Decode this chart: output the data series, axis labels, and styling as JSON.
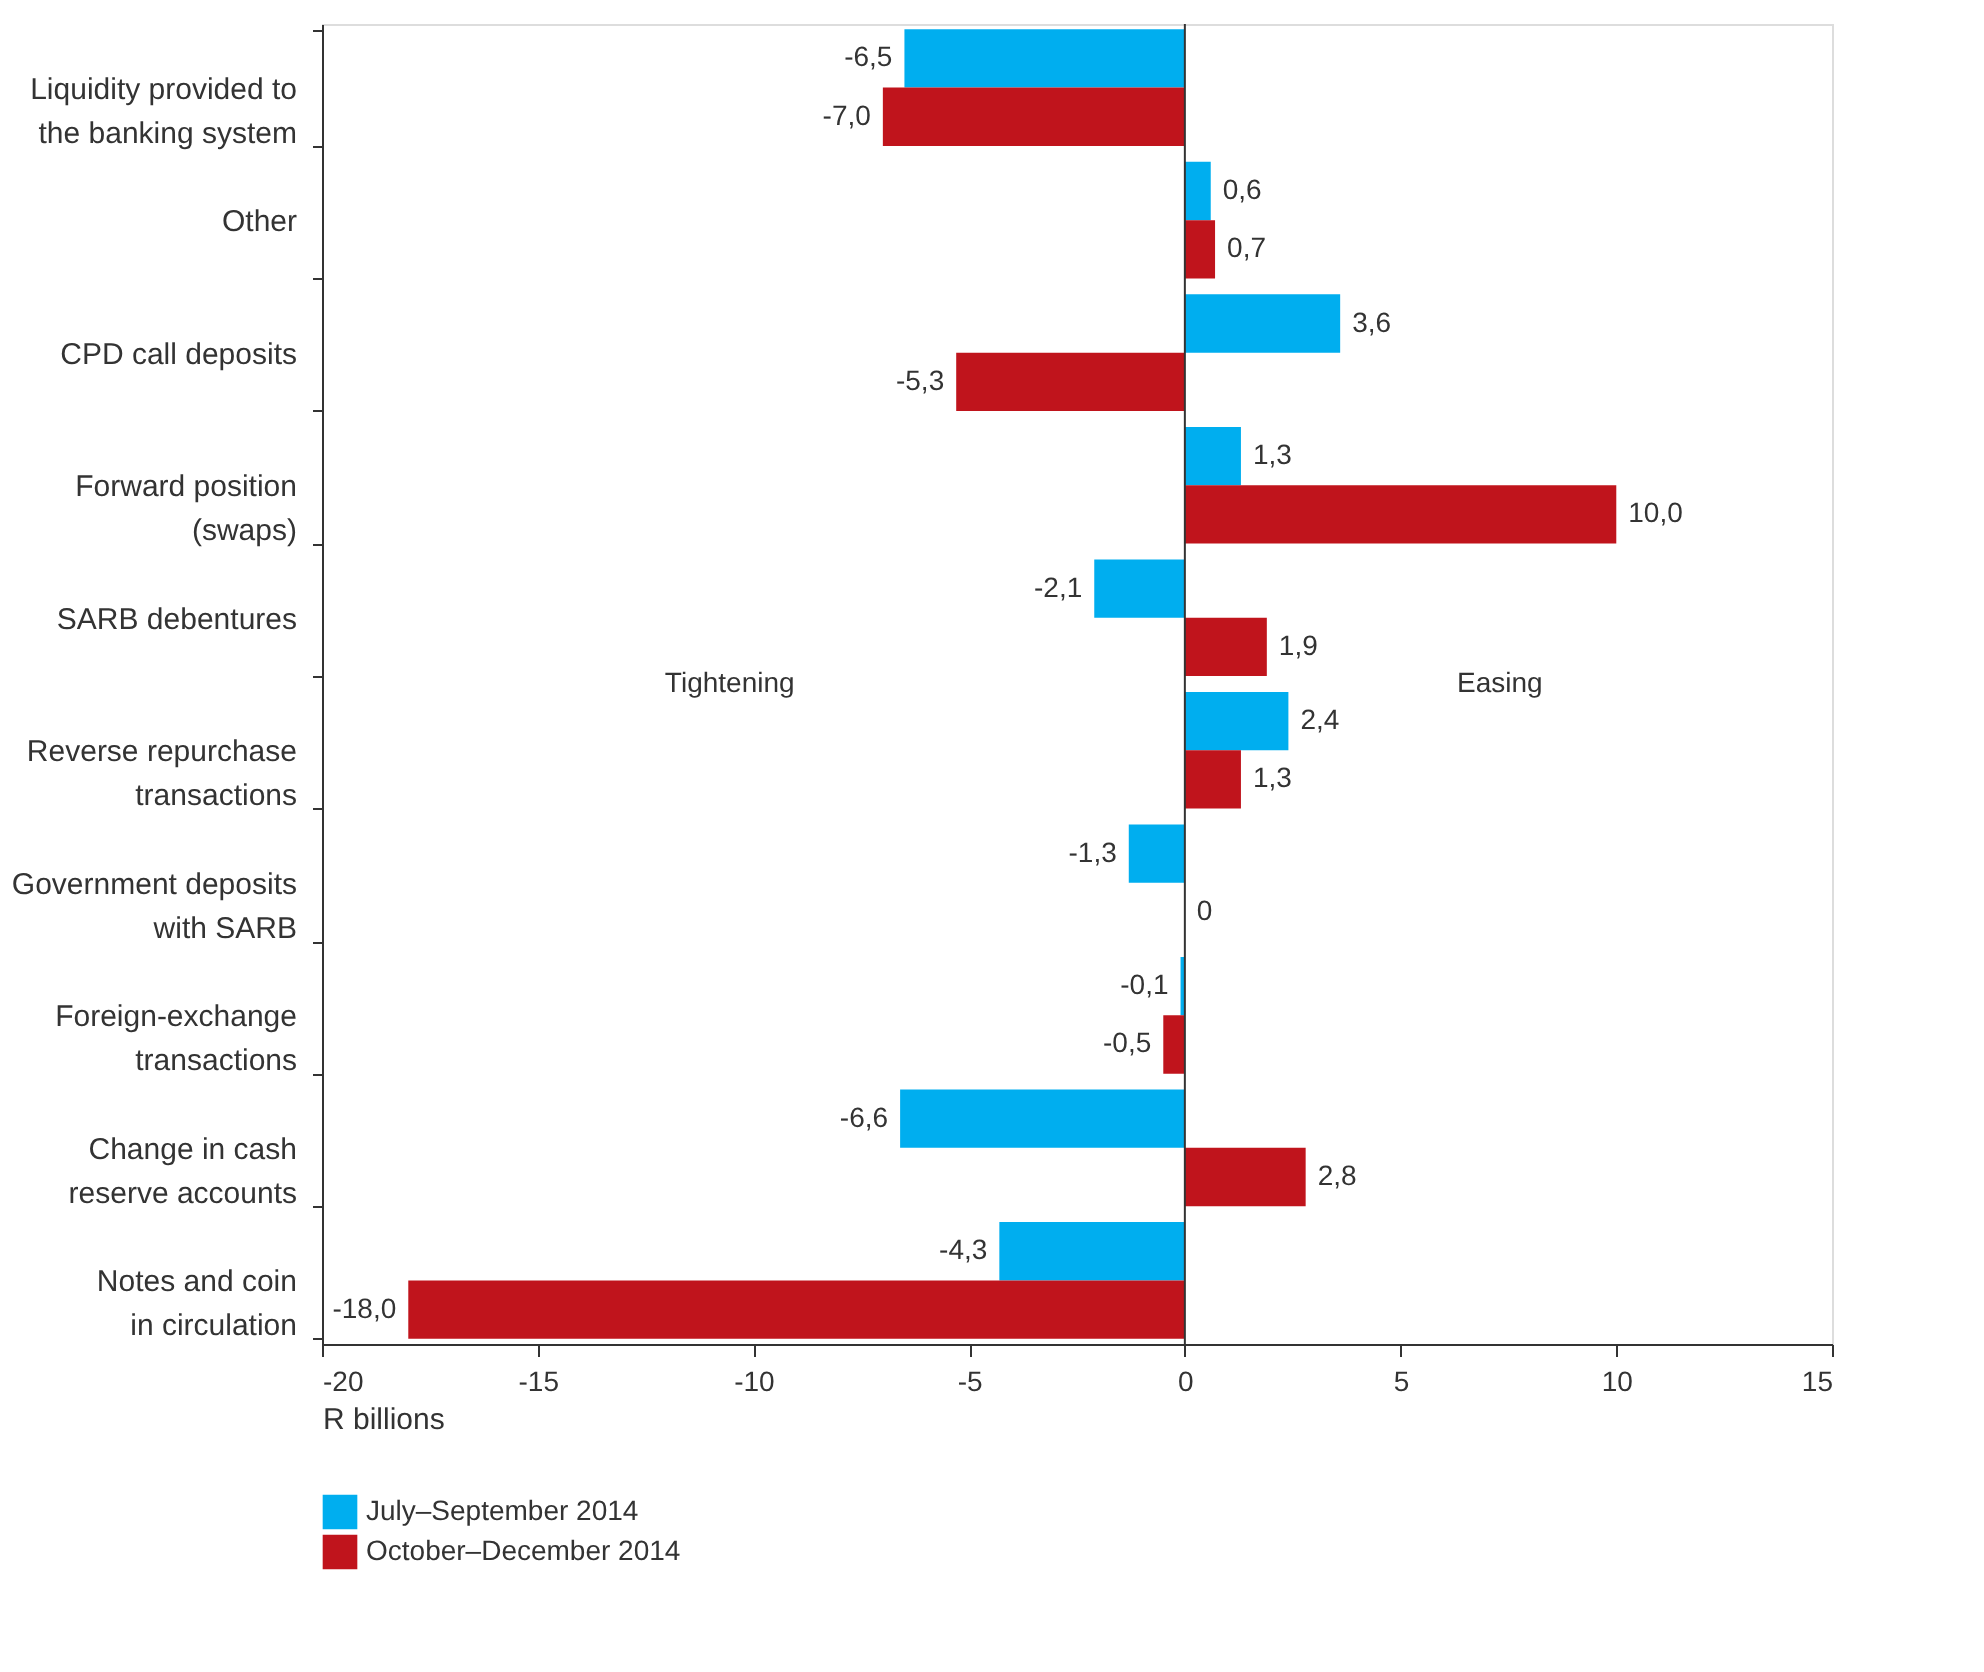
{
  "chart_data": {
    "type": "bar",
    "orientation": "horizontal",
    "categories": [
      "Liquidity provided to\nthe banking system",
      "Other",
      "CPD call deposits",
      "Forward position\n(swaps)",
      "SARB debentures",
      "Reverse repurchase\ntransactions",
      "Government deposits\nwith SARB",
      "Foreign-exchange\ntransactions",
      "Change in cash\nreserve accounts",
      "Notes and coin\nin circulation"
    ],
    "series": [
      {
        "name": "July–September 2014",
        "color": "#00aeef",
        "values": [
          -6.5,
          0.6,
          3.6,
          1.3,
          -2.1,
          2.4,
          -1.3,
          -0.1,
          -6.6,
          -4.3
        ],
        "value_labels": [
          "-6,5",
          "0,6",
          "3,6",
          "1,3",
          "-2,1",
          "2,4",
          "-1,3",
          "-0,1",
          "-6,6",
          "-4,3"
        ]
      },
      {
        "name": "October–December 2014",
        "color": "#c0141c",
        "values": [
          -7.0,
          0.7,
          -5.3,
          10.0,
          1.9,
          1.3,
          0,
          -0.5,
          2.8,
          -18.0
        ],
        "value_labels": [
          "-7,0",
          "0,7",
          "-5,3",
          "10,0",
          "1,9",
          "1,3",
          "0",
          "-0,5",
          "2,8",
          "-18,0"
        ]
      }
    ],
    "xlim": [
      -20,
      15
    ],
    "xticks": [
      -20,
      -15,
      -10,
      -5,
      0,
      5,
      10,
      15
    ],
    "xlabel": "R billions",
    "annotations": [
      "Tightening",
      "Easing"
    ],
    "ref_lines": [
      {
        "axis": "x",
        "value": 0,
        "color": "#333333"
      }
    ],
    "legend": "bottom",
    "grid": false
  }
}
